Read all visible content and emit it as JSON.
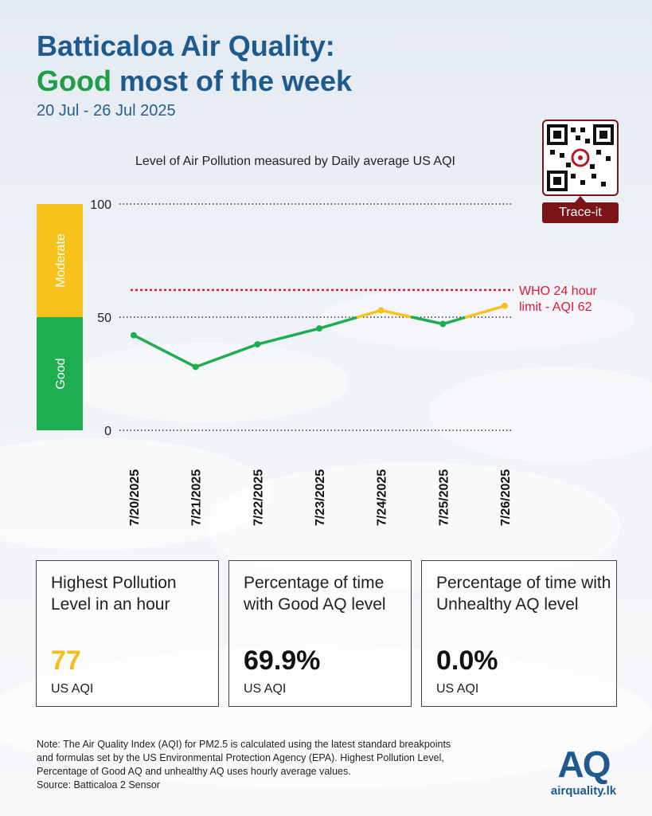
{
  "header": {
    "title_line1": "Batticaloa Air Quality:",
    "title_good": "Good",
    "title_rest": " most of the week",
    "date_range": "20 Jul - 26 Jul 2025"
  },
  "qr": {
    "label": "Trace-it"
  },
  "chart_data": {
    "type": "line",
    "title": "Level of Air Pollution measured by Daily average US AQI",
    "categories": [
      "7/20/2025",
      "7/21/2025",
      "7/22/2025",
      "7/23/2025",
      "7/24/2025",
      "7/25/2025",
      "7/26/2025"
    ],
    "values": [
      42,
      28,
      38,
      45,
      53,
      47,
      55
    ],
    "ylim": [
      0,
      100
    ],
    "yticks": [
      0,
      50,
      100
    ],
    "grid": "dotted horizontal at ticks",
    "bands": [
      {
        "label": "Good",
        "from": 0,
        "to": 50,
        "color": "#1ead4f"
      },
      {
        "label": "Moderate",
        "from": 50,
        "to": 100,
        "color": "#f7c21c"
      }
    ],
    "reference_line": {
      "value": 62,
      "label_line1": "WHO 24 hour",
      "label_line2": "limit - AQI 62",
      "color": "#e0183c"
    },
    "line_colors": {
      "good": "#1ead4f",
      "moderate": "#f7c21c"
    }
  },
  "cards": [
    {
      "label": "Highest Pollution Level in an hour",
      "value": "77",
      "unit": "US AQI"
    },
    {
      "label": "Percentage of time with Good AQ level",
      "value": "69.9%",
      "unit": "US AQI"
    },
    {
      "label": "Percentage of time with Unhealthy AQ level",
      "value": "0.0%",
      "unit": "US AQI"
    }
  ],
  "footer": {
    "note_line1": "Note: The Air Quality Index (AQI) for PM2.5 is calculated using the latest standard breakpoints",
    "note_line2": "and formulas set by the US Environmental Protection Agency (EPA). Highest Pollution Level,",
    "note_line3": "Percentage of Good AQ and unhealthy AQ uses hourly average values.",
    "source": "Source: Batticaloa 2 Sensor"
  },
  "logo": {
    "mark": "AQ",
    "text": "airquality.lk"
  }
}
